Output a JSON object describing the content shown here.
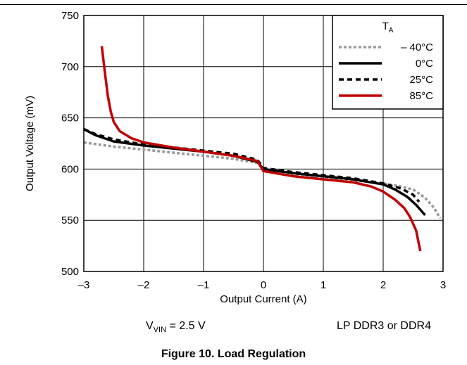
{
  "chart_data": {
    "type": "line",
    "title": "",
    "xlabel": "Output Current (A)",
    "ylabel": "Output Voltage (mV)",
    "xlim": [
      -3,
      3
    ],
    "ylim": [
      500,
      750
    ],
    "xticks": [
      -3,
      -2,
      -1,
      0,
      1,
      2,
      3
    ],
    "xtick_labels": [
      "–3",
      "–2",
      "–1",
      "0",
      "1",
      "2",
      "3"
    ],
    "yticks": [
      500,
      550,
      600,
      650,
      700,
      750
    ],
    "ytick_labels": [
      "500",
      "550",
      "600",
      "650",
      "700",
      "750"
    ],
    "grid": true,
    "legend": {
      "position": "top-right",
      "title_main": "T",
      "title_sub": "A"
    },
    "series": [
      {
        "name": "– 40°C",
        "color": "#999999",
        "dash": "dotted",
        "x": [
          -3.0,
          -2.5,
          -2.0,
          -1.5,
          -1.0,
          -0.5,
          -0.1,
          0.0,
          0.5,
          1.0,
          1.5,
          2.0,
          2.3,
          2.5,
          2.7,
          2.85,
          2.95
        ],
        "y": [
          626,
          622,
          619,
          616,
          613,
          610,
          606,
          599,
          595,
          592,
          589,
          586,
          583,
          580,
          572,
          562,
          552
        ]
      },
      {
        "name": "0°C",
        "color": "#000000",
        "dash": "solid",
        "x": [
          -3.0,
          -2.8,
          -2.5,
          -2.0,
          -1.5,
          -1.0,
          -0.5,
          -0.1,
          0.0,
          0.5,
          1.0,
          1.5,
          2.0,
          2.2,
          2.4,
          2.55,
          2.7
        ],
        "y": [
          639,
          633,
          627,
          623,
          620,
          617,
          613,
          607,
          600,
          596,
          593,
          590,
          585,
          580,
          573,
          565,
          555
        ]
      },
      {
        "name": "25°C",
        "color": "#000000",
        "dash": "dashed",
        "x": [
          -3.0,
          -2.8,
          -2.5,
          -2.0,
          -1.5,
          -1.0,
          -0.5,
          -0.1,
          0.0,
          0.5,
          1.0,
          1.5,
          2.0,
          2.3,
          2.5,
          2.6
        ],
        "y": [
          639,
          634,
          629,
          624,
          621,
          618,
          615,
          609,
          601,
          597,
          594,
          591,
          586,
          581,
          575,
          568
        ]
      },
      {
        "name": "85°C",
        "color": "#c00000",
        "dash": "solid",
        "x": [
          -2.7,
          -2.65,
          -2.6,
          -2.55,
          -2.5,
          -2.4,
          -2.2,
          -2.0,
          -1.5,
          -1.0,
          -0.5,
          -0.1,
          0.0,
          0.5,
          1.0,
          1.5,
          1.8,
          2.0,
          2.2,
          2.35,
          2.45,
          2.55,
          2.62
        ],
        "y": [
          720,
          695,
          672,
          656,
          646,
          637,
          630,
          626,
          621,
          617,
          613,
          608,
          598,
          593,
          590,
          587,
          583,
          578,
          570,
          562,
          553,
          540,
          520
        ]
      }
    ]
  },
  "notes": {
    "vin_main": "V",
    "vin_sub": "VIN",
    "vin_rest": " = 2.5 V",
    "ddr": "LP DDR3 or DDR4"
  },
  "caption": "Figure 10. Load Regulation"
}
